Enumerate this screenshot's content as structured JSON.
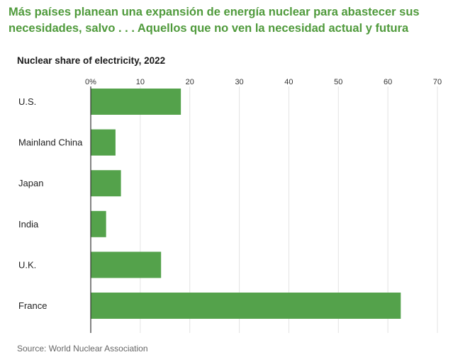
{
  "headline": "Más países planean una expansión de energía nuclear para abastecer sus necesidades, salvo . . . Aquellos que no ven la necesidad actual y futura",
  "colors": {
    "headline": "#4f9a3b",
    "bar": "#54a24b",
    "grid": "#e3e3e3",
    "axis": "#333333"
  },
  "chart_data": {
    "type": "bar",
    "orientation": "horizontal",
    "title": "Nuclear share of electricity, 2022",
    "xlabel": "",
    "ylabel": "",
    "categories": [
      "U.S.",
      "Mainland China",
      "Japan",
      "India",
      "U.K.",
      "France"
    ],
    "values": [
      18.2,
      5.0,
      6.1,
      3.1,
      14.2,
      62.6
    ],
    "xlim": [
      0,
      70
    ],
    "ticks": [
      0,
      10,
      20,
      30,
      40,
      50,
      60,
      70
    ],
    "tick_labels": [
      "0%",
      "10",
      "20",
      "30",
      "40",
      "50",
      "60",
      "70"
    ],
    "grid": true,
    "legend": "none",
    "source": "Source: World Nuclear Association"
  }
}
